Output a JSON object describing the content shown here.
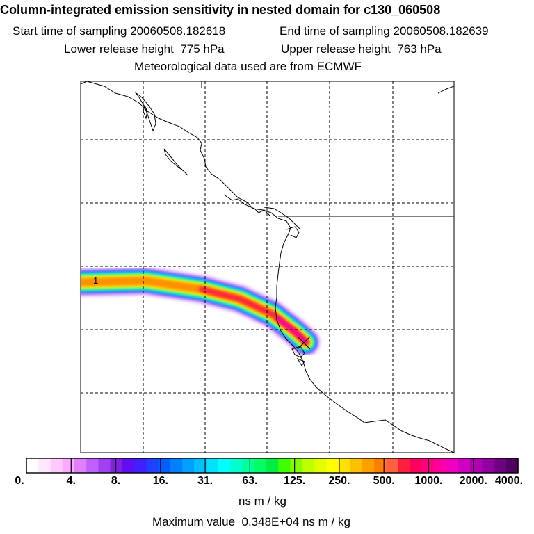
{
  "header": {
    "title": "Column-integrated emission sensitivity in nested domain for c130_060508",
    "start_label": "Start time of sampling",
    "start_value": "20060508.182618",
    "end_label": "End time of sampling",
    "end_value": "20060508.182639",
    "lower_label": "Lower release height",
    "lower_value": "775 hPa",
    "upper_label": "Upper release height",
    "upper_value": "763 hPa",
    "met_line": "Meteorological data used are from ECMWF"
  },
  "map": {
    "plume_label": "1",
    "release_marker": "X"
  },
  "colorbar": {
    "ticks": [
      "0.",
      "4.",
      "8.",
      "16.",
      "31.",
      "63.",
      "125.",
      "250.",
      "500.",
      "1000.",
      "2000.",
      "4000."
    ],
    "unit": "ns m / kg",
    "colors": [
      "#ffffff",
      "#ffe8ff",
      "#ffc8ff",
      "#ffa8ff",
      "#e080ff",
      "#c060ff",
      "#a040f0",
      "#8020e0",
      "#6010f0",
      "#4020ff",
      "#2040ff",
      "#0060ff",
      "#0080ff",
      "#00a0ff",
      "#00c0ff",
      "#00e0ff",
      "#00ffff",
      "#00ffcc",
      "#00ff99",
      "#00ff66",
      "#00ee44",
      "#40ff00",
      "#80ff00",
      "#c0ff00",
      "#e0ff00",
      "#ffff00",
      "#ffe000",
      "#ffc000",
      "#ffa000",
      "#ff8000",
      "#ff6040",
      "#ff2040",
      "#ff0060",
      "#ff0080",
      "#ff00a0",
      "#f000c0",
      "#d000c0",
      "#b000b0",
      "#9000a0",
      "#700080",
      "#500060"
    ]
  },
  "footer": {
    "max_label": "Maximum value",
    "max_value": "0.348E+04",
    "max_unit": "ns m / kg"
  }
}
